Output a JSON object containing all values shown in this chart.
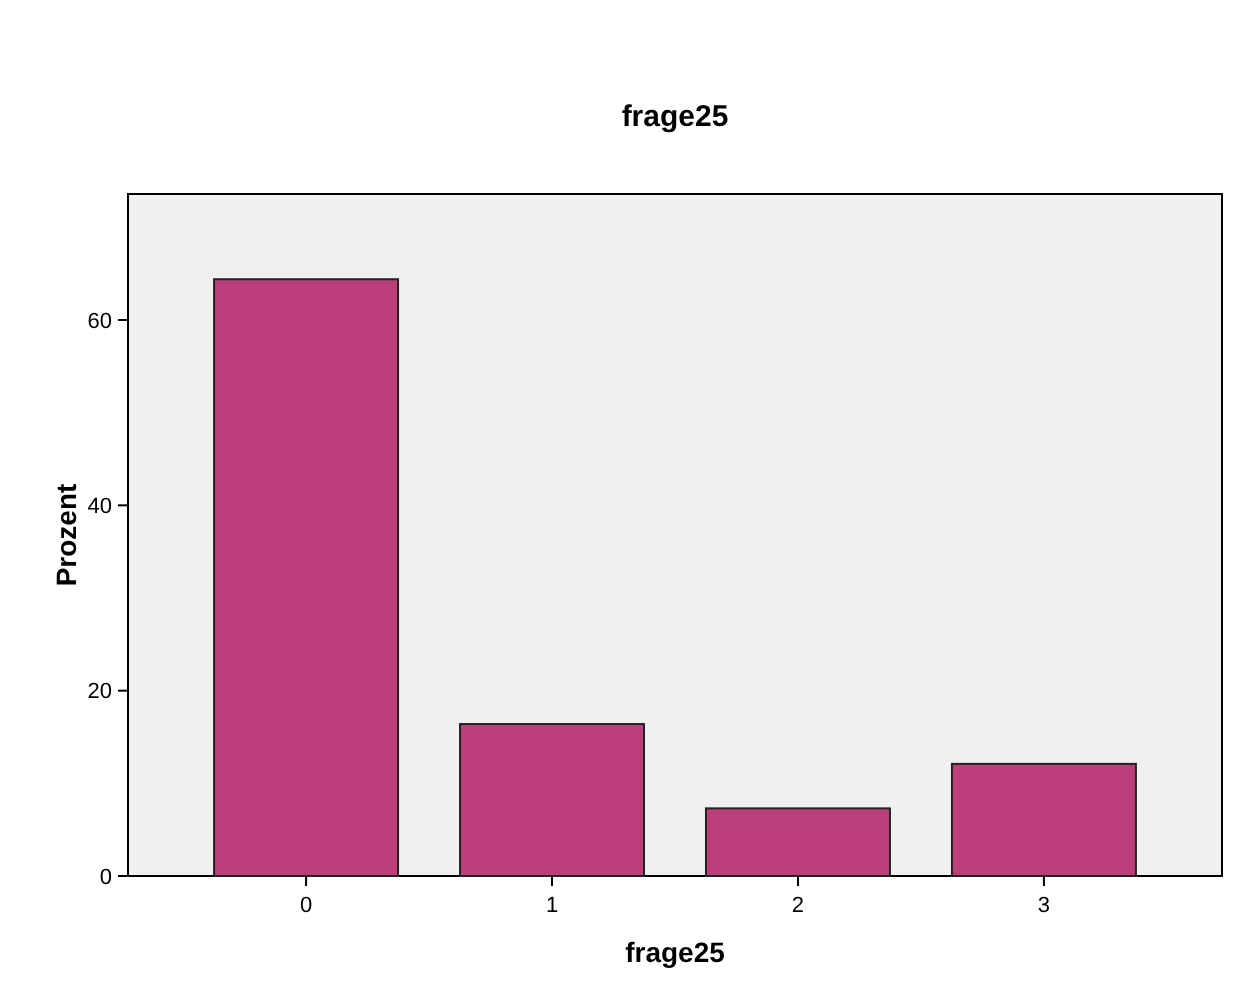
{
  "chart_data": {
    "type": "bar",
    "title": "frage25",
    "xlabel": "frage25",
    "ylabel": "Prozent",
    "categories": [
      "0",
      "1",
      "2",
      "3"
    ],
    "values": [
      64.4,
      16.4,
      7.3,
      12.1
    ],
    "color": "#bc3f7c",
    "ylim": [
      0,
      73.6
    ],
    "yticks": [
      0,
      20,
      40,
      60
    ],
    "grid": false
  }
}
